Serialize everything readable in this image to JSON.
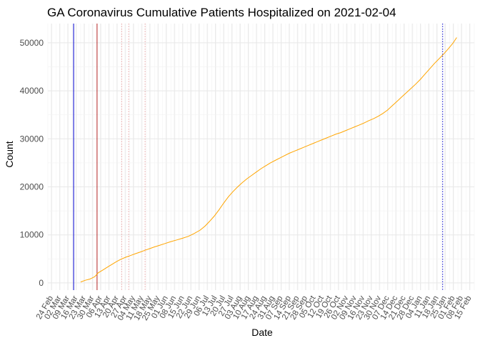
{
  "chart_data": {
    "type": "line",
    "title": "GA Coronavirus Cumulative Patients Hospitalized on 2021-02-04",
    "xlabel": "Date",
    "ylabel": "Count",
    "grid": true,
    "legend": "none",
    "x_range": [
      "2020-02-21",
      "2021-02-19"
    ],
    "ylim": [
      -1500,
      54000
    ],
    "y_ticks": [
      0,
      10000,
      20000,
      30000,
      40000,
      50000
    ],
    "x_ticks": [
      {
        "date": "2020-02-24",
        "label": "24 Feb"
      },
      {
        "date": "2020-03-02",
        "label": "02 Mar"
      },
      {
        "date": "2020-03-09",
        "label": "09 Mar"
      },
      {
        "date": "2020-03-16",
        "label": "16 Mar"
      },
      {
        "date": "2020-03-23",
        "label": "23 Mar"
      },
      {
        "date": "2020-03-30",
        "label": "30 Mar"
      },
      {
        "date": "2020-04-06",
        "label": "06 Apr"
      },
      {
        "date": "2020-04-13",
        "label": "13 Apr"
      },
      {
        "date": "2020-04-20",
        "label": "20 Apr"
      },
      {
        "date": "2020-04-27",
        "label": "27 Apr"
      },
      {
        "date": "2020-05-04",
        "label": "04 May"
      },
      {
        "date": "2020-05-11",
        "label": "11 May"
      },
      {
        "date": "2020-05-18",
        "label": "18 May"
      },
      {
        "date": "2020-05-25",
        "label": "25 May"
      },
      {
        "date": "2020-06-01",
        "label": "01 Jun"
      },
      {
        "date": "2020-06-08",
        "label": "08 Jun"
      },
      {
        "date": "2020-06-15",
        "label": "15 Jun"
      },
      {
        "date": "2020-06-22",
        "label": "22 Jun"
      },
      {
        "date": "2020-06-29",
        "label": "29 Jun"
      },
      {
        "date": "2020-07-06",
        "label": "06 Jul"
      },
      {
        "date": "2020-07-13",
        "label": "13 Jul"
      },
      {
        "date": "2020-07-20",
        "label": "20 Jul"
      },
      {
        "date": "2020-07-27",
        "label": "27 Jul"
      },
      {
        "date": "2020-08-03",
        "label": "03 Aug"
      },
      {
        "date": "2020-08-10",
        "label": "10 Aug"
      },
      {
        "date": "2020-08-17",
        "label": "17 Aug"
      },
      {
        "date": "2020-08-24",
        "label": "24 Aug"
      },
      {
        "date": "2020-08-31",
        "label": "31 Aug"
      },
      {
        "date": "2020-09-07",
        "label": "07 Sep"
      },
      {
        "date": "2020-09-14",
        "label": "14 Sep"
      },
      {
        "date": "2020-09-21",
        "label": "21 Sep"
      },
      {
        "date": "2020-09-28",
        "label": "28 Sep"
      },
      {
        "date": "2020-10-05",
        "label": "05 Oct"
      },
      {
        "date": "2020-10-12",
        "label": "12 Oct"
      },
      {
        "date": "2020-10-19",
        "label": "19 Oct"
      },
      {
        "date": "2020-10-26",
        "label": "26 Oct"
      },
      {
        "date": "2020-11-02",
        "label": "02 Nov"
      },
      {
        "date": "2020-11-09",
        "label": "09 Nov"
      },
      {
        "date": "2020-11-16",
        "label": "16 Nov"
      },
      {
        "date": "2020-11-23",
        "label": "23 Nov"
      },
      {
        "date": "2020-11-30",
        "label": "30 Nov"
      },
      {
        "date": "2020-12-07",
        "label": "07 Dec"
      },
      {
        "date": "2020-12-14",
        "label": "14 Dec"
      },
      {
        "date": "2020-12-21",
        "label": "21 Dec"
      },
      {
        "date": "2020-12-28",
        "label": "28 Dec"
      },
      {
        "date": "2021-01-04",
        "label": "04 Jan"
      },
      {
        "date": "2021-01-11",
        "label": "11 Jan"
      },
      {
        "date": "2021-01-18",
        "label": "18 Jan"
      },
      {
        "date": "2021-01-25",
        "label": "25 Jan"
      },
      {
        "date": "2021-02-01",
        "label": "01 Feb"
      },
      {
        "date": "2021-02-08",
        "label": "08 Feb"
      },
      {
        "date": "2021-02-15",
        "label": "15 Feb"
      }
    ],
    "series": [
      {
        "color": "#FFA500",
        "points": [
          [
            "2020-03-20",
            200
          ],
          [
            "2020-03-24",
            550
          ],
          [
            "2020-03-28",
            800
          ],
          [
            "2020-04-01",
            1300
          ],
          [
            "2020-04-04",
            2100
          ],
          [
            "2020-04-08",
            2700
          ],
          [
            "2020-04-12",
            3300
          ],
          [
            "2020-04-16",
            3900
          ],
          [
            "2020-04-20",
            4500
          ],
          [
            "2020-04-24",
            5000
          ],
          [
            "2020-04-28",
            5400
          ],
          [
            "2020-05-02",
            5750
          ],
          [
            "2020-05-06",
            6100
          ],
          [
            "2020-05-10",
            6450
          ],
          [
            "2020-05-14",
            6800
          ],
          [
            "2020-05-18",
            7150
          ],
          [
            "2020-05-22",
            7500
          ],
          [
            "2020-05-26",
            7800
          ],
          [
            "2020-05-31",
            8200
          ],
          [
            "2020-06-05",
            8600
          ],
          [
            "2020-06-10",
            8950
          ],
          [
            "2020-06-15",
            9300
          ],
          [
            "2020-06-20",
            9700
          ],
          [
            "2020-06-25",
            10300
          ],
          [
            "2020-06-30",
            11000
          ],
          [
            "2020-07-04",
            11800
          ],
          [
            "2020-07-08",
            12800
          ],
          [
            "2020-07-12",
            13900
          ],
          [
            "2020-07-16",
            15200
          ],
          [
            "2020-07-20",
            16600
          ],
          [
            "2020-07-24",
            17900
          ],
          [
            "2020-07-28",
            19000
          ],
          [
            "2020-08-01",
            20000
          ],
          [
            "2020-08-05",
            20900
          ],
          [
            "2020-08-09",
            21700
          ],
          [
            "2020-08-13",
            22400
          ],
          [
            "2020-08-17",
            23100
          ],
          [
            "2020-08-21",
            23800
          ],
          [
            "2020-08-25",
            24400
          ],
          [
            "2020-08-29",
            25000
          ],
          [
            "2020-09-02",
            25500
          ],
          [
            "2020-09-06",
            26000
          ],
          [
            "2020-09-10",
            26500
          ],
          [
            "2020-09-14",
            27000
          ],
          [
            "2020-09-18",
            27400
          ],
          [
            "2020-09-22",
            27800
          ],
          [
            "2020-09-26",
            28200
          ],
          [
            "2020-09-30",
            28600
          ],
          [
            "2020-10-04",
            29000
          ],
          [
            "2020-10-08",
            29400
          ],
          [
            "2020-10-12",
            29800
          ],
          [
            "2020-10-16",
            30200
          ],
          [
            "2020-10-20",
            30600
          ],
          [
            "2020-10-24",
            31000
          ],
          [
            "2020-10-28",
            31300
          ],
          [
            "2020-11-01",
            31700
          ],
          [
            "2020-11-05",
            32100
          ],
          [
            "2020-11-09",
            32500
          ],
          [
            "2020-11-13",
            32900
          ],
          [
            "2020-11-17",
            33300
          ],
          [
            "2020-11-21",
            33800
          ],
          [
            "2020-11-25",
            34200
          ],
          [
            "2020-11-29",
            34700
          ],
          [
            "2020-12-03",
            35300
          ],
          [
            "2020-12-07",
            36000
          ],
          [
            "2020-12-11",
            36900
          ],
          [
            "2020-12-15",
            37800
          ],
          [
            "2020-12-19",
            38700
          ],
          [
            "2020-12-23",
            39600
          ],
          [
            "2020-12-27",
            40500
          ],
          [
            "2020-12-31",
            41400
          ],
          [
            "2021-01-04",
            42400
          ],
          [
            "2021-01-08",
            43500
          ],
          [
            "2021-01-12",
            44600
          ],
          [
            "2021-01-16",
            45700
          ],
          [
            "2021-01-20",
            46700
          ],
          [
            "2021-01-24",
            47700
          ],
          [
            "2021-01-28",
            48800
          ],
          [
            "2021-02-01",
            50000
          ],
          [
            "2021-02-04",
            51100
          ]
        ]
      }
    ],
    "vertical_lines": [
      {
        "date": "2020-03-14",
        "color": "#0000CD",
        "style": "solid"
      },
      {
        "date": "2020-04-03",
        "color": "#B22222",
        "style": "solid"
      },
      {
        "date": "2020-04-24",
        "color": "#E8A0A0",
        "style": "dotted"
      },
      {
        "date": "2020-04-30",
        "color": "#E8A0A0",
        "style": "dotted"
      },
      {
        "date": "2020-05-14",
        "color": "#E8A0A0",
        "style": "dotted"
      },
      {
        "date": "2021-01-23",
        "color": "#0000CD",
        "style": "dotted"
      }
    ]
  }
}
